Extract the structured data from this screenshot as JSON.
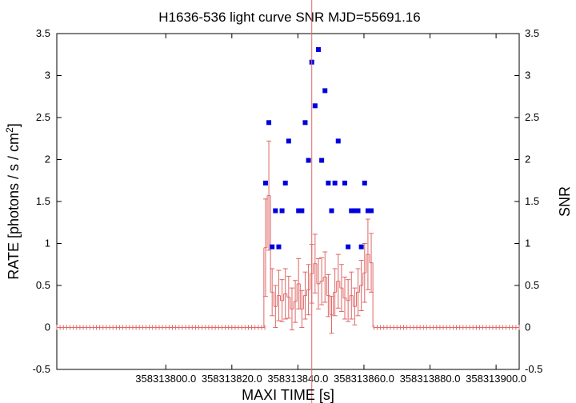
{
  "chart_data": {
    "type": "scatter",
    "title": "H1636-536 light curve  SNR MJD=55691.16",
    "xlabel": "MAXI TIME [s]",
    "ylabel_left": "RATE [photons / s / cm",
    "ylabel_left_sup": "2",
    "ylabel_left_end": "]",
    "ylabel_right": "SNR",
    "x_offset": 358313770,
    "xlim": [
      358313767,
      358313907
    ],
    "ylim": [
      -0.5,
      3.5
    ],
    "x_tick_values": [
      358313800,
      358313820,
      358313840,
      358313860,
      358313880,
      358313900
    ],
    "x_tick_labels": [
      "358313800.0",
      "358313820.0",
      "358313840.0",
      "358313860.0",
      "358313880.0",
      "358313900.0"
    ],
    "y_tick_values": [
      -0.5,
      0,
      0.5,
      1,
      1.5,
      2,
      2.5,
      3,
      3.5
    ],
    "y_tick_labels": [
      "-0.5",
      "0",
      "0.5",
      "1",
      "1.5",
      "2",
      "2.5",
      "3",
      "3.5"
    ],
    "marker_time": 358313844.2,
    "colors": {
      "rate": "#e06666",
      "snr": "#0000dd",
      "marker": "#e06666"
    },
    "rate_series": {
      "bin_width": 1,
      "x": [
        358313830.2,
        358313831.2,
        358313832.2,
        358313833.2,
        358313834.2,
        358313835.2,
        358313836.2,
        358313837.2,
        358313838.2,
        358313839.2,
        358313840.2,
        358313841.2,
        358313842.2,
        358313843.2,
        358313844.2,
        358313845.2,
        358313846.2,
        358313847.2,
        358313848.2,
        358313849.2,
        358313850.2,
        358313851.2,
        358313852.2,
        358313853.2,
        358313854.2,
        358313855.2,
        358313856.2,
        358313857.2,
        358313858.2,
        358313859.2,
        358313860.2,
        358313861.2,
        358313862.2
      ],
      "y": [
        0.95,
        1.57,
        0.42,
        0.25,
        0.38,
        0.32,
        0.4,
        0.36,
        0.22,
        0.31,
        0.52,
        0.22,
        0.38,
        0.45,
        0.64,
        0.76,
        0.52,
        0.55,
        0.6,
        0.38,
        0.15,
        0.42,
        0.55,
        0.47,
        0.35,
        0.32,
        0.38,
        0.25,
        0.42,
        0.5,
        0.65,
        0.87,
        0.77
      ],
      "yerr": [
        0.58,
        0.65,
        0.28,
        0.25,
        0.3,
        0.25,
        0.3,
        0.25,
        0.25,
        0.25,
        0.3,
        0.22,
        0.28,
        0.3,
        0.35,
        0.35,
        0.3,
        0.28,
        0.3,
        0.25,
        0.22,
        0.28,
        0.32,
        0.28,
        0.25,
        0.25,
        0.28,
        0.22,
        0.28,
        0.3,
        0.35,
        0.42,
        0.35
      ]
    },
    "rate_zero_segments": [
      [
        358313767,
        358313830
      ],
      [
        358313863,
        358313907
      ]
    ],
    "snr_series": {
      "x": [
        358313830.2,
        358313831.2,
        358313832.2,
        358313833.2,
        358313834.2,
        358313835.2,
        358313836.2,
        358313837.2,
        358313840.2,
        358313841.2,
        358313842.2,
        358313843.2,
        358313844.2,
        358313845.2,
        358313846.2,
        358313847.2,
        358313848.2,
        358313849.2,
        358313850.2,
        358313851.2,
        358313852.2,
        358313854.2,
        358313855.2,
        358313856.2,
        358313857.2,
        358313858.2,
        358313859.2,
        358313860.2,
        358313861.2,
        358313862.2
      ],
      "y": [
        1.72,
        2.44,
        0.96,
        1.39,
        0.96,
        1.39,
        1.72,
        2.22,
        1.39,
        1.39,
        2.44,
        1.99,
        3.16,
        2.64,
        3.31,
        1.99,
        2.82,
        1.72,
        1.39,
        1.72,
        2.22,
        1.72,
        0.96,
        1.39,
        1.39,
        1.39,
        0.96,
        1.72,
        1.39,
        1.39
      ]
    }
  }
}
